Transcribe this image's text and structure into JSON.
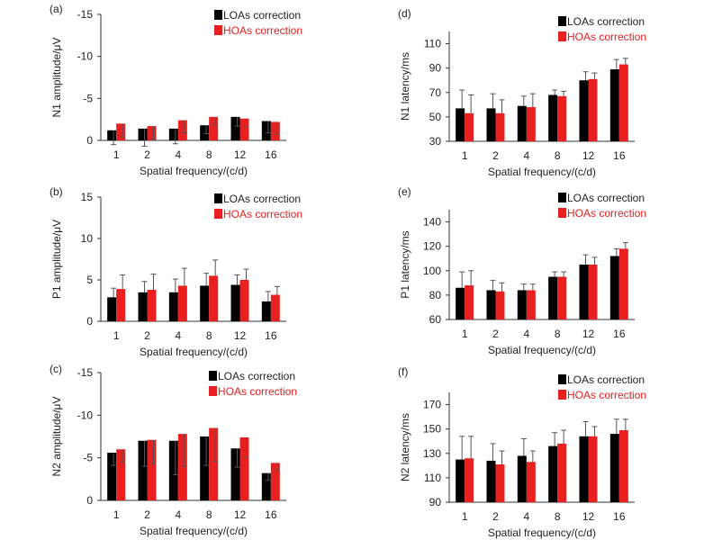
{
  "colors": {
    "loas": "#000000",
    "hoas": "#e8201f",
    "axis": "#333333",
    "errbar": "#555555"
  },
  "chart_data": [
    {
      "id": "a",
      "type": "bar",
      "panel_label": "(a)",
      "categories": [
        "1",
        "2",
        "4",
        "8",
        "12",
        "16"
      ],
      "ylabel": "N1 amplitude/μV",
      "xlabel": "Spatial frequency/(c/d)",
      "ylim": [
        0,
        -15
      ],
      "yticks": [
        0,
        -5,
        -10,
        -15
      ],
      "ytick_labels": [
        "0",
        "-5",
        "-10",
        "-15"
      ],
      "series": [
        {
          "name": "LOAs correction",
          "values": [
            -1.2,
            -1.4,
            -1.4,
            -1.8,
            -2.8,
            -2.3
          ],
          "errors": [
            1.7,
            2.1,
            1.8,
            1.0,
            1.1,
            1.4
          ]
        },
        {
          "name": "HOAs correction",
          "values": [
            -2.0,
            -1.7,
            -2.4,
            -2.8,
            -2.6,
            -2.2
          ],
          "errors": [
            1.6,
            1.6,
            1.5,
            1.0,
            1.0,
            1.5
          ]
        }
      ]
    },
    {
      "id": "b",
      "type": "bar",
      "panel_label": "(b)",
      "categories": [
        "1",
        "2",
        "4",
        "8",
        "12",
        "16"
      ],
      "ylabel": "P1 amplitude/μV",
      "xlabel": "Spatial frequency/(c/d)",
      "ylim": [
        0,
        15
      ],
      "yticks": [
        0,
        5,
        10,
        15
      ],
      "ytick_labels": [
        "0",
        "5",
        "10",
        "15"
      ],
      "series": [
        {
          "name": "LOAs correction",
          "values": [
            2.9,
            3.5,
            3.5,
            4.3,
            4.4,
            2.4
          ],
          "errors": [
            1.1,
            1.3,
            1.6,
            1.5,
            1.2,
            1.2
          ]
        },
        {
          "name": "HOAs correction",
          "values": [
            3.9,
            3.8,
            4.3,
            5.5,
            5.0,
            3.2
          ],
          "errors": [
            1.7,
            1.9,
            2.1,
            1.9,
            1.3,
            1.0
          ]
        }
      ]
    },
    {
      "id": "c",
      "type": "bar",
      "panel_label": "(c)",
      "categories": [
        "1",
        "2",
        "4",
        "8",
        "12",
        "16"
      ],
      "ylabel": "N2 amplitude/μV",
      "xlabel": "Spatial frequency/(c/d)",
      "ylim": [
        0,
        -15
      ],
      "yticks": [
        0,
        -5,
        -10,
        -15
      ],
      "ytick_labels": [
        "0",
        "-5",
        "-10",
        "-15"
      ],
      "series": [
        {
          "name": "LOAs correction",
          "values": [
            -5.6,
            -7.0,
            -7.0,
            -7.5,
            -6.1,
            -3.2
          ],
          "errors": [
            1.5,
            3.0,
            4.0,
            3.4,
            2.2,
            0.8
          ]
        },
        {
          "name": "HOAs correction",
          "values": [
            -6.0,
            -7.1,
            -7.8,
            -8.5,
            -7.4,
            -4.4
          ],
          "errors": [
            1.5,
            2.8,
            3.8,
            3.9,
            2.3,
            0.8
          ]
        }
      ]
    },
    {
      "id": "d",
      "type": "bar",
      "panel_label": "(d)",
      "categories": [
        "1",
        "2",
        "4",
        "8",
        "12",
        "16"
      ],
      "ylabel": "N1 latency/ms",
      "xlabel": "Spatial frequency/(c/d)",
      "ylim": [
        30,
        120
      ],
      "yticks": [
        30,
        50,
        70,
        90,
        110
      ],
      "ytick_labels": [
        "30",
        "50",
        "70",
        "90",
        "110"
      ],
      "series": [
        {
          "name": "LOAs correction",
          "values": [
            57,
            57,
            59,
            68,
            80,
            89
          ],
          "errors": [
            15,
            12,
            8,
            4,
            7,
            8
          ]
        },
        {
          "name": "HOAs correction",
          "values": [
            53,
            53,
            58,
            67,
            81,
            93
          ],
          "errors": [
            15,
            11,
            11,
            4,
            5,
            5
          ]
        }
      ]
    },
    {
      "id": "e",
      "type": "bar",
      "panel_label": "(e)",
      "categories": [
        "1",
        "2",
        "4",
        "8",
        "12",
        "16"
      ],
      "ylabel": "P1 latency/ms",
      "xlabel": "Spatial frequency/(c/d)",
      "ylim": [
        60,
        150
      ],
      "yticks": [
        60,
        80,
        100,
        120,
        140
      ],
      "ytick_labels": [
        "60",
        "80",
        "100",
        "120",
        "140"
      ],
      "series": [
        {
          "name": "LOAs correction",
          "values": [
            86,
            84,
            84,
            95,
            105,
            112
          ],
          "errors": [
            13,
            8,
            5,
            4,
            8,
            6
          ]
        },
        {
          "name": "HOAs correction",
          "values": [
            88,
            83,
            84,
            95,
            105,
            118
          ],
          "errors": [
            12,
            7,
            5,
            4,
            6,
            5
          ]
        }
      ]
    },
    {
      "id": "f",
      "type": "bar",
      "panel_label": "(f)",
      "categories": [
        "1",
        "2",
        "4",
        "8",
        "12",
        "16"
      ],
      "ylabel": "N2 latency/ms",
      "xlabel": "Spatial frequency/(c/d)",
      "ylim": [
        90,
        180
      ],
      "yticks": [
        90,
        110,
        130,
        150,
        170
      ],
      "ytick_labels": [
        "90",
        "110",
        "130",
        "150",
        "170"
      ],
      "series": [
        {
          "name": "LOAs correction",
          "values": [
            125,
            124,
            128,
            136,
            144,
            146
          ],
          "errors": [
            19,
            14,
            14,
            11,
            12,
            12
          ]
        },
        {
          "name": "HOAs correction",
          "values": [
            126,
            121,
            123,
            138,
            144,
            149
          ],
          "errors": [
            18,
            11,
            9,
            11,
            8,
            9
          ]
        }
      ]
    }
  ]
}
